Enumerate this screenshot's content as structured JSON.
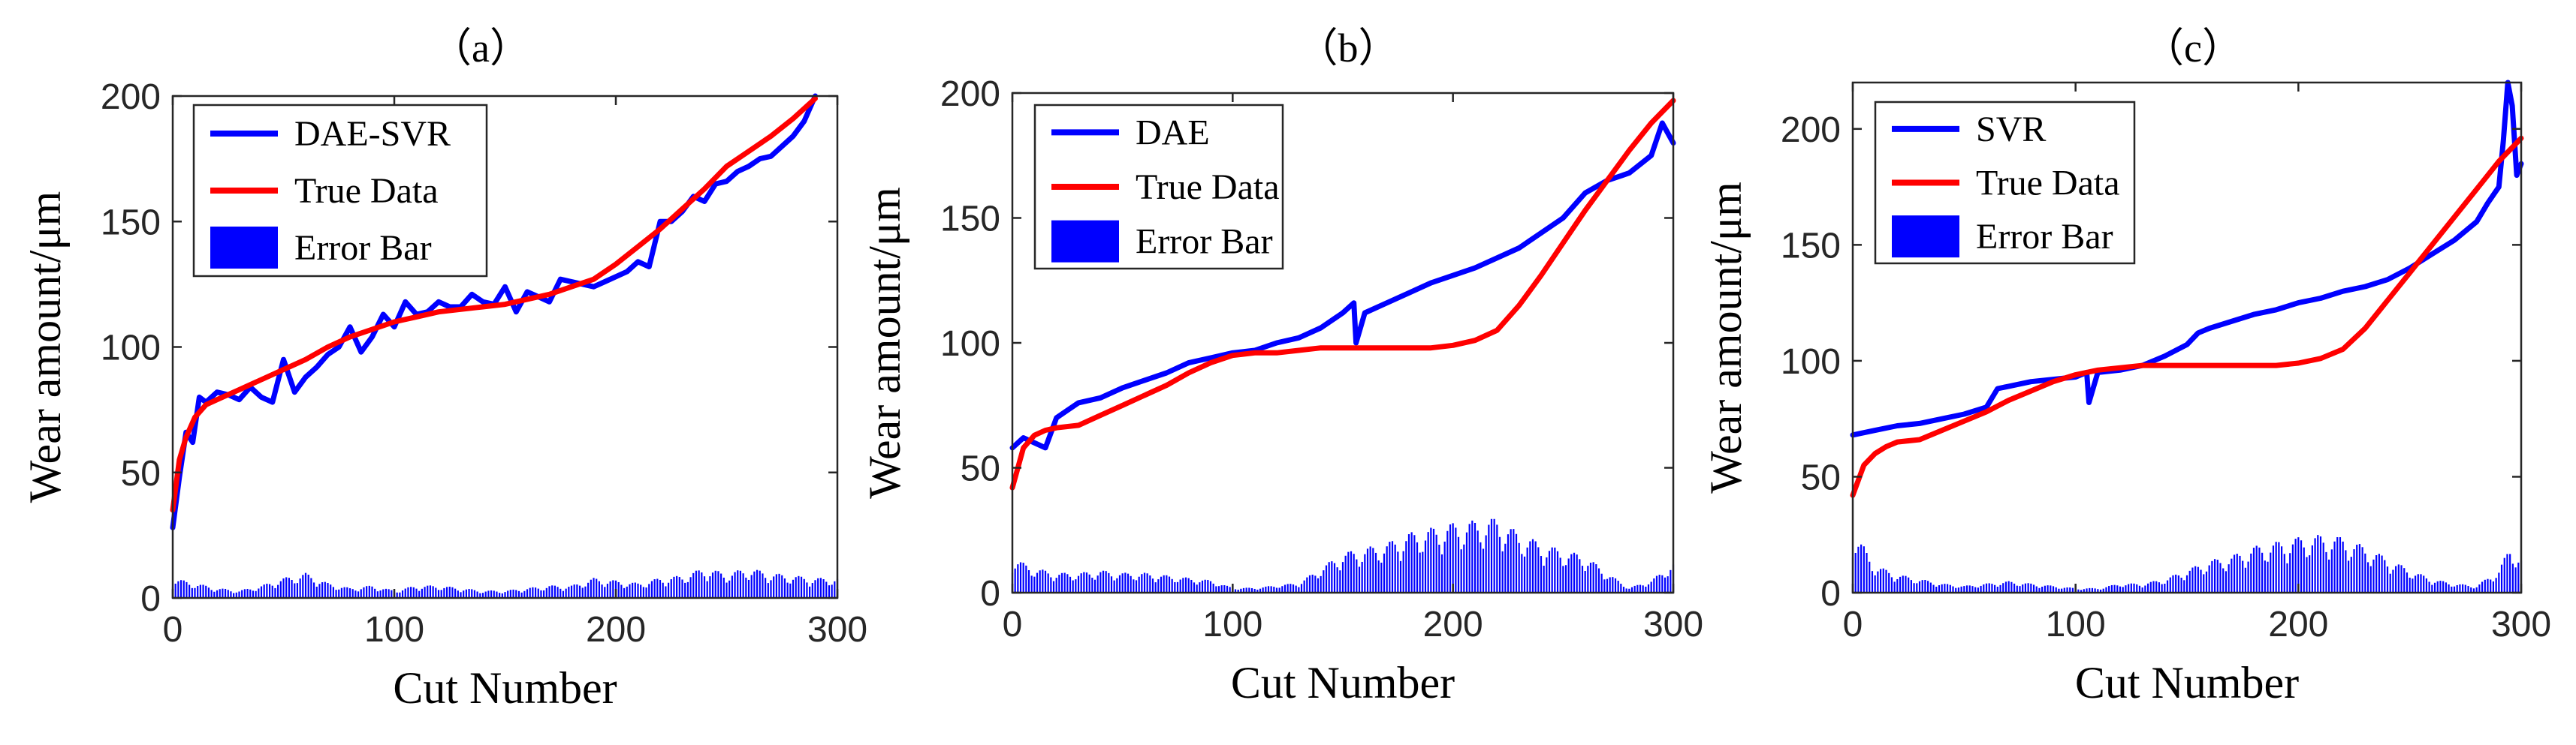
{
  "colors": {
    "prediction": "#0000ff",
    "true_data": "#ff0000",
    "error_bar": "#0000ff"
  },
  "chart_data": [
    {
      "type": "line",
      "title": "（a）",
      "xlabel": "Cut Number",
      "ylabel": "Wear amount/μm",
      "xlim": [
        0,
        300
      ],
      "ylim": [
        0,
        200
      ],
      "xticks": [
        "0",
        "100",
        "200",
        "300"
      ],
      "yticks": [
        "0",
        "50",
        "100",
        "150",
        "200"
      ],
      "legend": {
        "placement": "top-left",
        "entries": [
          "DAE-SVR",
          "True Data",
          "Error Bar"
        ]
      },
      "series": [
        {
          "name": "DAE-SVR",
          "x": [
            0,
            3,
            6,
            9,
            12,
            15,
            20,
            25,
            30,
            35,
            40,
            45,
            50,
            55,
            60,
            65,
            70,
            75,
            80,
            85,
            90,
            95,
            100,
            105,
            110,
            115,
            120,
            125,
            130,
            135,
            140,
            145,
            150,
            155,
            160,
            165,
            170,
            175,
            180,
            185,
            190,
            195,
            200,
            205,
            210,
            215,
            220,
            225,
            230,
            235,
            240,
            245,
            250,
            255,
            260,
            265,
            270,
            275,
            280,
            285,
            290
          ],
          "values": [
            28,
            48,
            66,
            62,
            80,
            78,
            82,
            81,
            79,
            84,
            80,
            78,
            95,
            82,
            88,
            92,
            97,
            100,
            108,
            98,
            104,
            113,
            108,
            118,
            113,
            114,
            118,
            116,
            116,
            121,
            118,
            117,
            124,
            114,
            122,
            120,
            118,
            127,
            126,
            125,
            124,
            126,
            128,
            130,
            134,
            132,
            150,
            150,
            154,
            160,
            158,
            165,
            166,
            170,
            172,
            175,
            176,
            180,
            184,
            190,
            200
          ]
        },
        {
          "name": "True Data",
          "x": [
            0,
            3,
            6,
            10,
            15,
            20,
            30,
            40,
            50,
            60,
            70,
            80,
            90,
            100,
            110,
            120,
            130,
            140,
            150,
            160,
            170,
            180,
            190,
            200,
            210,
            220,
            230,
            240,
            250,
            260,
            270,
            280,
            290
          ],
          "values": [
            35,
            55,
            64,
            72,
            77,
            79,
            83,
            87,
            91,
            95,
            100,
            104,
            107,
            110,
            112,
            114,
            115,
            116,
            117,
            119,
            121,
            124,
            127,
            133,
            140,
            147,
            155,
            163,
            172,
            178,
            184,
            191,
            199
          ]
        }
      ],
      "error_bar": {
        "name": "Error Bar",
        "x": [
          0,
          10,
          20,
          30,
          40,
          50,
          60,
          70,
          80,
          90,
          100,
          110,
          120,
          130,
          140,
          150,
          160,
          170,
          180,
          190,
          200,
          210,
          220,
          230,
          240,
          250,
          260,
          270,
          280,
          290
        ],
        "values": [
          8,
          6,
          4,
          3,
          5,
          8,
          10,
          6,
          4,
          5,
          3,
          5,
          5,
          4,
          3,
          3,
          4,
          5,
          5,
          8,
          7,
          6,
          8,
          9,
          12,
          10,
          12,
          10,
          9,
          8
        ]
      }
    },
    {
      "type": "line",
      "title": "（b）",
      "xlabel": "Cut Number",
      "ylabel": "Wear amount/μm",
      "xlim": [
        0,
        300
      ],
      "ylim": [
        0,
        200
      ],
      "xticks": [
        "0",
        "100",
        "200",
        "300"
      ],
      "yticks": [
        "0",
        "50",
        "100",
        "150",
        "200"
      ],
      "legend": {
        "placement": "top-left",
        "entries": [
          "DAE",
          "True Data",
          "Error Bar"
        ]
      },
      "series": [
        {
          "name": "DAE",
          "x": [
            0,
            5,
            10,
            15,
            20,
            25,
            30,
            40,
            50,
            60,
            70,
            80,
            90,
            100,
            110,
            120,
            130,
            140,
            150,
            155,
            156,
            160,
            170,
            180,
            190,
            200,
            210,
            220,
            230,
            240,
            250,
            260,
            270,
            280,
            290,
            295,
            300
          ],
          "values": [
            58,
            62,
            60,
            58,
            70,
            73,
            76,
            78,
            82,
            85,
            88,
            92,
            94,
            96,
            97,
            100,
            102,
            106,
            112,
            116,
            100,
            112,
            116,
            120,
            124,
            127,
            130,
            134,
            138,
            144,
            150,
            160,
            165,
            168,
            175,
            188,
            180
          ]
        },
        {
          "name": "True Data",
          "x": [
            0,
            5,
            10,
            15,
            20,
            30,
            40,
            50,
            60,
            70,
            80,
            90,
            100,
            110,
            120,
            130,
            140,
            150,
            160,
            170,
            180,
            190,
            200,
            210,
            220,
            230,
            240,
            250,
            260,
            270,
            280,
            290,
            300
          ],
          "values": [
            42,
            58,
            63,
            65,
            66,
            67,
            71,
            75,
            79,
            83,
            88,
            92,
            95,
            96,
            96,
            97,
            98,
            98,
            98,
            98,
            98,
            98,
            99,
            101,
            105,
            115,
            127,
            140,
            153,
            165,
            177,
            188,
            197
          ]
        }
      ],
      "error_bar": {
        "name": "Error Bar",
        "x": [
          0,
          10,
          20,
          30,
          40,
          50,
          60,
          70,
          80,
          90,
          100,
          110,
          120,
          130,
          140,
          150,
          160,
          170,
          180,
          190,
          200,
          210,
          220,
          230,
          240,
          250,
          260,
          270,
          280,
          290,
          300
        ],
        "values": [
          14,
          10,
          8,
          8,
          9,
          8,
          8,
          7,
          6,
          5,
          2,
          2,
          3,
          4,
          10,
          16,
          18,
          20,
          24,
          26,
          28,
          29,
          30,
          24,
          20,
          17,
          15,
          8,
          2,
          5,
          12
        ]
      }
    },
    {
      "type": "line",
      "title": "（c）",
      "xlabel": "Cut Number",
      "ylabel": "Wear amount/μm",
      "xlim": [
        0,
        300
      ],
      "ylim": [
        0,
        220
      ],
      "xticks": [
        "0",
        "100",
        "200",
        "300"
      ],
      "yticks": [
        "0",
        "50",
        "100",
        "150",
        "200"
      ],
      "legend": {
        "placement": "top-left",
        "entries": [
          "SVR",
          "True Data",
          "Error Bar"
        ]
      },
      "series": [
        {
          "name": "SVR",
          "x": [
            0,
            10,
            20,
            30,
            40,
            50,
            60,
            65,
            70,
            80,
            90,
            100,
            105,
            106,
            110,
            120,
            130,
            140,
            150,
            155,
            160,
            170,
            180,
            190,
            200,
            210,
            220,
            230,
            240,
            250,
            260,
            270,
            280,
            285,
            290,
            292,
            294,
            296,
            298,
            300
          ],
          "values": [
            68,
            70,
            72,
            73,
            75,
            77,
            80,
            88,
            89,
            91,
            92,
            93,
            95,
            82,
            95,
            96,
            98,
            102,
            107,
            112,
            114,
            117,
            120,
            122,
            125,
            127,
            130,
            132,
            135,
            140,
            146,
            152,
            160,
            168,
            175,
            195,
            220,
            210,
            180,
            185
          ]
        },
        {
          "name": "True Data",
          "x": [
            0,
            5,
            10,
            15,
            20,
            30,
            40,
            50,
            60,
            70,
            80,
            90,
            100,
            110,
            120,
            130,
            140,
            150,
            160,
            170,
            180,
            190,
            200,
            210,
            220,
            230,
            240,
            250,
            260,
            270,
            280,
            290,
            300
          ],
          "values": [
            42,
            55,
            60,
            63,
            65,
            66,
            70,
            74,
            78,
            83,
            87,
            91,
            94,
            96,
            97,
            98,
            98,
            98,
            98,
            98,
            98,
            98,
            99,
            101,
            105,
            114,
            126,
            138,
            150,
            162,
            174,
            186,
            196
          ]
        }
      ],
      "error_bar": {
        "name": "Error Bar",
        "x": [
          0,
          5,
          10,
          20,
          30,
          40,
          50,
          60,
          70,
          80,
          90,
          100,
          110,
          120,
          130,
          140,
          150,
          160,
          170,
          180,
          190,
          200,
          210,
          220,
          230,
          240,
          250,
          260,
          270,
          280,
          290,
          295,
          300
        ],
        "values": [
          26,
          20,
          12,
          8,
          6,
          4,
          3,
          4,
          5,
          4,
          3,
          2,
          2,
          4,
          4,
          6,
          10,
          14,
          16,
          20,
          22,
          24,
          25,
          24,
          20,
          15,
          10,
          6,
          4,
          3,
          10,
          20,
          15
        ]
      }
    }
  ]
}
